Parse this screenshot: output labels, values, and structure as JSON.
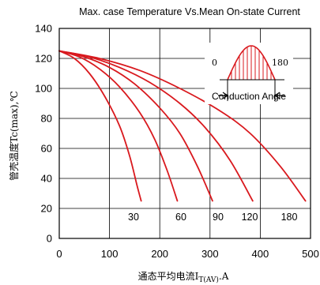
{
  "chart_data": {
    "type": "line",
    "title": "Max. case Temperature Vs.Mean On-state Current",
    "ylabel": "管壳温度Tc(max),℃",
    "xlabel": {
      "main": "通态平均电流I",
      "sub": "T(AV)",
      "unit": ".A"
    },
    "xlim": [
      0,
      500
    ],
    "ylim": [
      0,
      140
    ],
    "x_ticks": [
      "0",
      "100",
      "200",
      "300",
      "400",
      "500"
    ],
    "y_ticks": [
      "0",
      "20",
      "40",
      "60",
      "80",
      "100",
      "120",
      "140"
    ],
    "grid": true,
    "line_color": "#d9191e",
    "series": [
      {
        "name": "30",
        "x": [
          0,
          30,
          60,
          90,
          120,
          140,
          155,
          163
        ],
        "y": [
          125,
          120,
          110,
          95,
          75,
          55,
          35,
          25
        ]
      },
      {
        "name": "60",
        "x": [
          0,
          40,
          80,
          120,
          160,
          190,
          215,
          235
        ],
        "y": [
          125,
          121,
          113,
          101,
          84,
          66,
          45,
          25
        ]
      },
      {
        "name": "90",
        "x": [
          0,
          50,
          100,
          150,
          200,
          240,
          275,
          305
        ],
        "y": [
          125,
          121,
          114,
          103,
          87,
          70,
          48,
          25
        ]
      },
      {
        "name": "120",
        "x": [
          0,
          60,
          120,
          180,
          240,
          290,
          340,
          385
        ],
        "y": [
          125,
          121,
          114,
          104,
          90,
          74,
          52,
          25
        ]
      },
      {
        "name": "180",
        "x": [
          0,
          80,
          160,
          240,
          320,
          380,
          440,
          490
        ],
        "y": [
          125,
          120,
          112,
          100,
          85,
          70,
          48,
          25
        ]
      }
    ],
    "inset": {
      "caption": "Conduction Angle",
      "start_label": "0",
      "end_label": "180"
    }
  }
}
